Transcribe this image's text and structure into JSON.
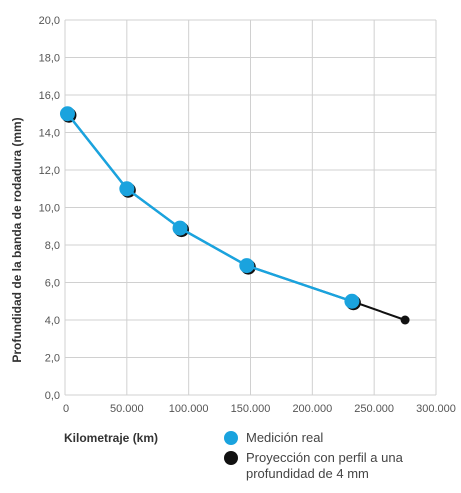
{
  "chart_data": {
    "type": "line",
    "xlabel": "Kilometraje  (km)",
    "ylabel": "Profundidad de la banda de rodadura (mm)",
    "xlim": [
      0,
      300000
    ],
    "ylim": [
      0,
      20
    ],
    "x_ticks": [
      "0",
      "50.000",
      "100.000",
      "150.000",
      "200.000",
      "250.000",
      "300.000"
    ],
    "x_tick_values": [
      0,
      50000,
      100000,
      150000,
      200000,
      250000,
      300000
    ],
    "y_ticks": [
      "0,0",
      "2,0",
      "4,0",
      "6,0",
      "8,0",
      "10,0",
      "12,0",
      "14,0",
      "16,0",
      "18,0",
      "20,0"
    ],
    "y_tick_values": [
      0,
      2,
      4,
      6,
      8,
      10,
      12,
      14,
      16,
      18,
      20
    ],
    "grid": true,
    "legend_position": "bottom-right",
    "series": [
      {
        "name": "Medición real",
        "color": "#1aa3de",
        "marker": "circle",
        "x": [
          2000,
          50000,
          93000,
          147000,
          232000
        ],
        "y": [
          15.0,
          11.0,
          8.9,
          6.9,
          5.0
        ]
      },
      {
        "name": "Proyección con perfil a una profundidad de 4 mm",
        "color": "#111111",
        "marker": "circle",
        "x": [
          2000,
          50000,
          93000,
          147000,
          232000,
          275000
        ],
        "y": [
          15.0,
          11.0,
          8.9,
          6.9,
          5.0,
          4.0
        ]
      }
    ]
  }
}
